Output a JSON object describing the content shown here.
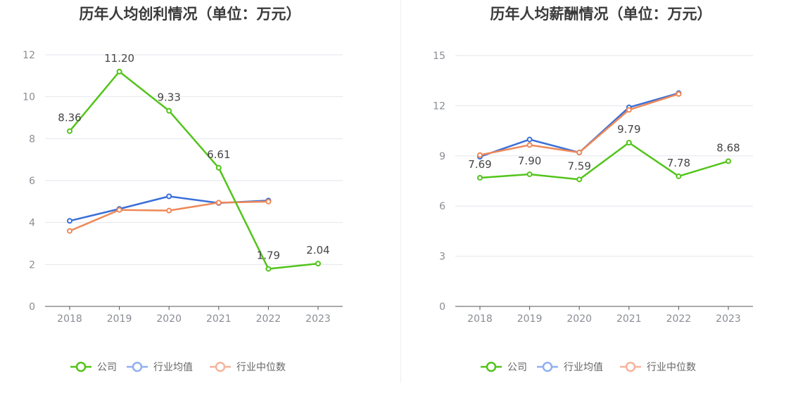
{
  "colors": {
    "company": "#52c41a",
    "industry_avg": "#3a6fd8",
    "industry_median": "#ef8857",
    "legend_avg": "#8fb0f0",
    "legend_median": "#f7b49c",
    "grid": "#e3e6ec",
    "axis": "#555555"
  },
  "legend": {
    "company": "公司",
    "industry_avg": "行业均值",
    "industry_median": "行业中位数"
  },
  "chart_data": [
    {
      "type": "line",
      "title": "历年人均创利情况（单位：万元）",
      "categories": [
        "2018",
        "2019",
        "2020",
        "2021",
        "2022",
        "2023"
      ],
      "ylim": [
        0,
        12
      ],
      "yticks": [
        "0",
        "2",
        "4",
        "6",
        "8",
        "10",
        "12"
      ],
      "grid": true,
      "legend_position": "bottom",
      "series": [
        {
          "key": "company",
          "name": "公司",
          "values": [
            8.36,
            11.2,
            9.33,
            6.61,
            1.79,
            2.04
          ],
          "labels": [
            "8.36",
            "11.20",
            "9.33",
            "6.61",
            "1.79",
            "2.04"
          ]
        },
        {
          "key": "industry_avg",
          "name": "行业均值",
          "values": [
            4.08,
            4.65,
            5.25,
            4.93,
            5.05,
            null
          ]
        },
        {
          "key": "industry_median",
          "name": "行业中位数",
          "values": [
            3.6,
            4.6,
            4.57,
            4.95,
            5.0,
            null
          ]
        }
      ]
    },
    {
      "type": "line",
      "title": "历年人均薪酬情况（单位：万元）",
      "categories": [
        "2018",
        "2019",
        "2020",
        "2021",
        "2022",
        "2023"
      ],
      "ylim": [
        0,
        15
      ],
      "yticks": [
        "0",
        "3",
        "6",
        "9",
        "12",
        "15"
      ],
      "grid": true,
      "legend_position": "bottom",
      "series": [
        {
          "key": "company",
          "name": "公司",
          "values": [
            7.69,
            7.9,
            7.59,
            9.79,
            7.78,
            8.68
          ],
          "labels": [
            "7.69",
            "7.90",
            "7.59",
            "9.79",
            "7.78",
            "8.68"
          ]
        },
        {
          "key": "industry_avg",
          "name": "行业均值",
          "values": [
            8.95,
            9.98,
            9.2,
            11.9,
            12.75,
            null
          ]
        },
        {
          "key": "industry_median",
          "name": "行业中位数",
          "values": [
            9.05,
            9.65,
            9.2,
            11.75,
            12.7,
            null
          ]
        }
      ]
    }
  ]
}
